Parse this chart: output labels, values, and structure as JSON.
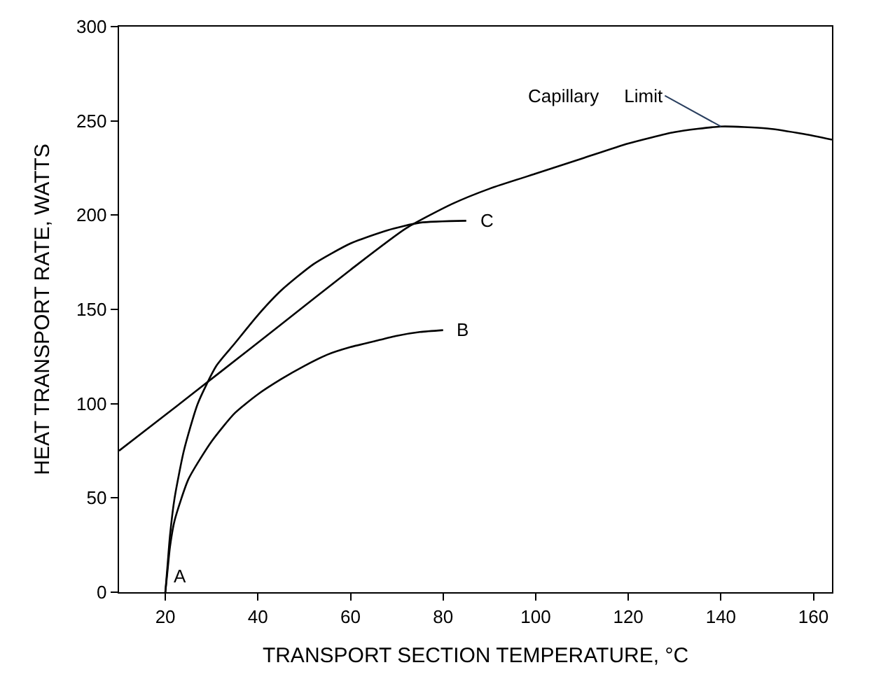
{
  "chart_data": {
    "type": "line",
    "xlabel": "TRANSPORT SECTION TEMPERATURE, °C",
    "ylabel": "HEAT TRANSPORT RATE, WATTS",
    "xlim": [
      10,
      164
    ],
    "xticks": [
      20,
      40,
      60,
      80,
      100,
      120,
      140,
      160
    ],
    "ylim": [
      0,
      300
    ],
    "yticks": [
      0,
      50,
      100,
      150,
      200,
      250,
      300
    ],
    "legend": false,
    "marker": "none",
    "line_style": "solid",
    "series": [
      {
        "color": "#000000",
        "x": [
          10,
          20,
          32,
          45,
          60,
          72,
          82,
          90,
          100,
          110,
          120,
          130,
          140,
          150,
          158,
          164
        ],
        "values": [
          75,
          94,
          117,
          142,
          171,
          193,
          206,
          214,
          222,
          230,
          238,
          244,
          247,
          246,
          243,
          240
        ]
      },
      {
        "name": "C",
        "color": "#000000",
        "x": [
          20,
          20.5,
          21,
          22,
          24,
          27,
          31,
          35,
          40,
          45,
          52,
          60,
          68,
          75,
          85
        ],
        "values": [
          0,
          15,
          30,
          50,
          75,
          100,
          120,
          132,
          147,
          160,
          174,
          185,
          192,
          196,
          197
        ]
      },
      {
        "name": "B",
        "color": "#000000",
        "x": [
          20,
          20.5,
          21,
          22,
          25,
          30,
          35,
          40,
          45,
          50,
          55,
          60,
          65,
          70,
          75,
          80
        ],
        "values": [
          0,
          12,
          24,
          38,
          60,
          80,
          95,
          105,
          113,
          120,
          126,
          130,
          133,
          136,
          138,
          139
        ]
      }
    ],
    "annotations": [
      {
        "text": "A",
        "x": 20,
        "y": 0
      },
      {
        "text": "Capillary     Limit",
        "x": 140,
        "y": 247
      }
    ]
  }
}
